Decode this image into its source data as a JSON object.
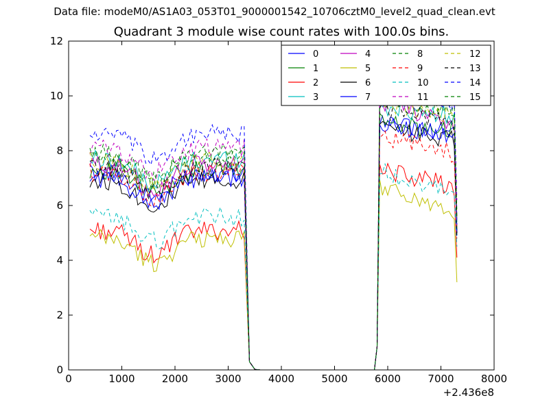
{
  "figure": {
    "suptitle": "Data file: modeM0/AS1A03_053T01_9000001542_10706cztM0_level2_quad_clean.evt",
    "title": "Quadrant 3 module wise count rates with 100.0s bins.",
    "x_offset_label": "+2.436e8"
  },
  "chart_data": {
    "type": "line",
    "xlim": [
      0,
      8000
    ],
    "ylim": [
      0,
      12
    ],
    "xticks": [
      0,
      1000,
      2000,
      3000,
      4000,
      5000,
      6000,
      7000,
      8000
    ],
    "yticks": [
      0,
      2,
      4,
      6,
      8,
      10,
      12
    ],
    "grid": false,
    "legend_placement": "top-right",
    "legend_columns": 4,
    "x_blocks": [
      {
        "start": 400,
        "step": 50,
        "n": 59
      },
      {
        "start": 3400,
        "step": 100,
        "n": 23
      },
      {
        "start": 5750,
        "step": 50,
        "n": 32
      }
    ],
    "series": [
      {
        "name": "0",
        "color": "#0000ff",
        "dash": "solid",
        "base1": 7.2,
        "amp1": 0.35,
        "drop1": 6.3,
        "base2": 9.0,
        "slope2": 0.4,
        "drop2": 5.0
      },
      {
        "name": "1",
        "color": "#008000",
        "dash": "solid",
        "base1": 7.3,
        "amp1": 0.35,
        "drop1": 6.4,
        "base2": 9.1,
        "slope2": 0.4,
        "drop2": 5.1
      },
      {
        "name": "2",
        "color": "#ff0000",
        "dash": "solid",
        "base1": 5.1,
        "amp1": 0.35,
        "drop1": 4.8,
        "base2": 7.3,
        "slope2": 0.6,
        "drop2": 4.1
      },
      {
        "name": "3",
        "color": "#00bfbf",
        "dash": "solid",
        "base1": 7.7,
        "amp1": 0.35,
        "drop1": 6.6,
        "base2": 9.6,
        "slope2": 0.3,
        "drop2": 5.4
      },
      {
        "name": "4",
        "color": "#bf00bf",
        "dash": "solid",
        "base1": 7.5,
        "amp1": 0.35,
        "drop1": 6.8,
        "base2": 9.8,
        "slope2": 0.9,
        "drop2": 5.6
      },
      {
        "name": "5",
        "color": "#bfbf00",
        "dash": "solid",
        "base1": 4.8,
        "amp1": 0.35,
        "drop1": 4.2,
        "base2": 6.7,
        "slope2": 0.9,
        "drop2": 3.2
      },
      {
        "name": "6",
        "color": "#000000",
        "dash": "solid",
        "base1": 6.9,
        "amp1": 0.35,
        "drop1": 6.2,
        "base2": 8.9,
        "slope2": 0.5,
        "drop2": 5.0
      },
      {
        "name": "7",
        "color": "#0000ff",
        "dash": "solid",
        "base1": 7.0,
        "amp1": 0.35,
        "drop1": 6.3,
        "base2": 9.0,
        "slope2": 0.5,
        "drop2": 4.9
      },
      {
        "name": "8",
        "color": "#008000",
        "dash": "dashed",
        "base1": 7.9,
        "amp1": 0.35,
        "drop1": 7.0,
        "base2": 9.9,
        "slope2": 0.4,
        "drop2": 5.8
      },
      {
        "name": "9",
        "color": "#ff0000",
        "dash": "dashed",
        "base1": 7.2,
        "amp1": 0.35,
        "drop1": 6.5,
        "base2": 8.5,
        "slope2": 0.6,
        "drop2": 5.2
      },
      {
        "name": "10",
        "color": "#00bfbf",
        "dash": "dashed",
        "base1": 5.6,
        "amp1": 0.35,
        "drop1": 4.8,
        "base2": 7.3,
        "slope2": 0.9,
        "drop2": 4.5
      },
      {
        "name": "11",
        "color": "#bf00bf",
        "dash": "dashed",
        "base1": 8.1,
        "amp1": 0.35,
        "drop1": 7.0,
        "base2": 10.6,
        "slope2": 0.9,
        "drop2": 6.2
      },
      {
        "name": "12",
        "color": "#bfbf00",
        "dash": "dashed",
        "base1": 7.6,
        "amp1": 0.35,
        "drop1": 6.6,
        "base2": 9.7,
        "slope2": 0.5,
        "drop2": 5.5
      },
      {
        "name": "13",
        "color": "#000000",
        "dash": "dashed",
        "base1": 7.4,
        "amp1": 0.35,
        "drop1": 6.5,
        "base2": 9.5,
        "slope2": 0.5,
        "drop2": 4.8
      },
      {
        "name": "14",
        "color": "#0000ff",
        "dash": "dashed",
        "base1": 8.6,
        "amp1": 0.35,
        "drop1": 7.0,
        "base2": 10.4,
        "slope2": 0.6,
        "drop2": 5.3
      },
      {
        "name": "15",
        "color": "#008000",
        "dash": "dashed",
        "base1": 7.8,
        "amp1": 0.35,
        "drop1": 6.8,
        "base2": 10.0,
        "slope2": 0.5,
        "drop2": 5.6
      }
    ]
  }
}
